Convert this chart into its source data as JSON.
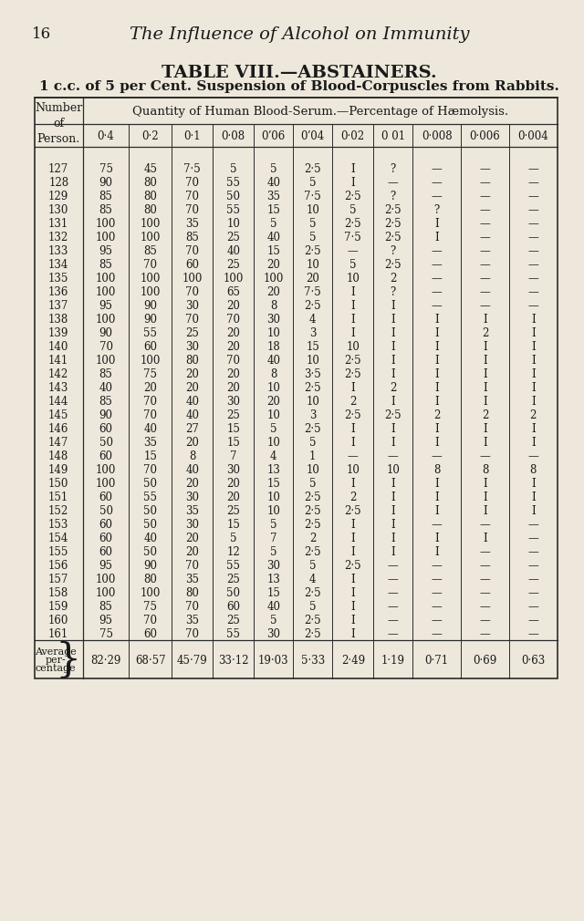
{
  "page_number": "16",
  "header_title": "The Influence of Alcohol on Immunity",
  "table_title": "TABLE VIII.—ABSTAINERS.",
  "table_subtitle": "1 c.c. of 5 per Cent. Suspension of Blood-Corpuscles from Rabbits.",
  "col_header_main": "Quantity of Human Blood-Serum.—Percentage of Hæmolysis.",
  "col_headers": [
    "0·4",
    "0·2",
    "0·1",
    "0·08",
    "0ʼ06",
    "0ʼ04",
    "0·02",
    "0 01",
    "0·008",
    "0·006",
    "0·004"
  ],
  "rows": [
    [
      "127",
      "75",
      "45",
      "7·5",
      "5",
      "5",
      "2·5",
      "I",
      "?",
      "—",
      "—",
      "—"
    ],
    [
      "128",
      "90",
      "80",
      "70",
      "55",
      "40",
      "5",
      "I",
      "—",
      "—",
      "—",
      "—"
    ],
    [
      "129",
      "85",
      "80",
      "70",
      "50",
      "35",
      "7·5",
      "2·5",
      "?",
      "—",
      "—",
      "—"
    ],
    [
      "130",
      "85",
      "80",
      "70",
      "55",
      "15",
      "10",
      "5",
      "2·5",
      "?",
      "—",
      "—"
    ],
    [
      "131",
      "100",
      "100",
      "35",
      "10",
      "5",
      "5",
      "2·5",
      "2·5",
      "I",
      "—",
      "—"
    ],
    [
      "132",
      "100",
      "100",
      "85",
      "25",
      "40",
      "5",
      "7·5",
      "2·5",
      "I",
      "—",
      "—"
    ],
    [
      "133",
      "95",
      "85",
      "70",
      "40",
      "15",
      "2·5",
      "—",
      "?",
      "—",
      "—",
      "—"
    ],
    [
      "134",
      "85",
      "70",
      "60",
      "25",
      "20",
      "10",
      "5",
      "2·5",
      "—",
      "—",
      "—"
    ],
    [
      "135",
      "100",
      "100",
      "100",
      "100",
      "100",
      "20",
      "10",
      "2",
      "—",
      "—",
      "—"
    ],
    [
      "136",
      "100",
      "100",
      "70",
      "65",
      "20",
      "7·5",
      "I",
      "?",
      "—",
      "—",
      "—"
    ],
    [
      "137",
      "95",
      "90",
      "30",
      "20",
      "8",
      "2·5",
      "I",
      "I",
      "—",
      "—",
      "—"
    ],
    [
      "138",
      "100",
      "90",
      "70",
      "70",
      "30",
      "4",
      "I",
      "I",
      "I",
      "I",
      "I"
    ],
    [
      "139",
      "90",
      "55",
      "25",
      "20",
      "10",
      "3",
      "I",
      "I",
      "I",
      "2",
      "I"
    ],
    [
      "140",
      "70",
      "60",
      "30",
      "20",
      "18",
      "15",
      "10",
      "I",
      "I",
      "I",
      "I"
    ],
    [
      "141",
      "100",
      "100",
      "80",
      "70",
      "40",
      "10",
      "2·5",
      "I",
      "I",
      "I",
      "I"
    ],
    [
      "142",
      "85",
      "75",
      "20",
      "20",
      "8",
      "3·5",
      "2·5",
      "I",
      "I",
      "I",
      "I"
    ],
    [
      "143",
      "40",
      "20",
      "20",
      "20",
      "10",
      "2·5",
      "I",
      "2",
      "I",
      "I",
      "I"
    ],
    [
      "144",
      "85",
      "70",
      "40",
      "30",
      "20",
      "10",
      "2",
      "I",
      "I",
      "I",
      "I"
    ],
    [
      "145",
      "90",
      "70",
      "40",
      "25",
      "10",
      "3",
      "2·5",
      "2·5",
      "2",
      "2",
      "2"
    ],
    [
      "146",
      "60",
      "40",
      "27",
      "15",
      "5",
      "2·5",
      "I",
      "I",
      "I",
      "I",
      "I"
    ],
    [
      "147",
      "50",
      "35",
      "20",
      "15",
      "10",
      "5",
      "I",
      "I",
      "I",
      "I",
      "I"
    ],
    [
      "148",
      "60",
      "15",
      "8",
      "7",
      "4",
      "1",
      "—",
      "—",
      "—",
      "—",
      "—"
    ],
    [
      "149",
      "100",
      "70",
      "40",
      "30",
      "13",
      "10",
      "10",
      "10",
      "8",
      "8",
      "8"
    ],
    [
      "150",
      "100",
      "50",
      "20",
      "20",
      "15",
      "5",
      "I",
      "I",
      "I",
      "I",
      "I"
    ],
    [
      "151",
      "60",
      "55",
      "30",
      "20",
      "10",
      "2·5",
      "2",
      "I",
      "I",
      "I",
      "I"
    ],
    [
      "152",
      "50",
      "50",
      "35",
      "25",
      "10",
      "2·5",
      "2·5",
      "I",
      "I",
      "I",
      "I"
    ],
    [
      "153",
      "60",
      "50",
      "30",
      "15",
      "5",
      "2·5",
      "I",
      "I",
      "—",
      "—",
      "—"
    ],
    [
      "154",
      "60",
      "40",
      "20",
      "5",
      "7",
      "2",
      "I",
      "I",
      "I",
      "I",
      "—"
    ],
    [
      "155",
      "60",
      "50",
      "20",
      "12",
      "5",
      "2·5",
      "I",
      "I",
      "I",
      "—",
      "—"
    ],
    [
      "156",
      "95",
      "90",
      "70",
      "55",
      "30",
      "5",
      "2·5",
      "—",
      "—",
      "—",
      "—"
    ],
    [
      "157",
      "100",
      "80",
      "35",
      "25",
      "13",
      "4",
      "I",
      "—",
      "—",
      "—",
      "—"
    ],
    [
      "158",
      "100",
      "100",
      "80",
      "50",
      "15",
      "2·5",
      "I",
      "—",
      "—",
      "—",
      "—"
    ],
    [
      "159",
      "85",
      "75",
      "70",
      "60",
      "40",
      "5",
      "I",
      "—",
      "—",
      "—",
      "—"
    ],
    [
      "160",
      "95",
      "70",
      "35",
      "25",
      "5",
      "2·5",
      "I",
      "—",
      "—",
      "—",
      "—"
    ],
    [
      "161",
      "75",
      "60",
      "70",
      "55",
      "30",
      "2·5",
      "I",
      "—",
      "—",
      "—",
      "—"
    ]
  ],
  "avg_values": [
    "82·29",
    "68·57",
    "45·79",
    "33·12",
    "19·03",
    "5·33",
    "2·49",
    "1·19",
    "0·71",
    "0·69",
    "0·63"
  ],
  "bg_color": "#ede8db",
  "text_color": "#1a1a1a",
  "line_color": "#2a2a2a"
}
